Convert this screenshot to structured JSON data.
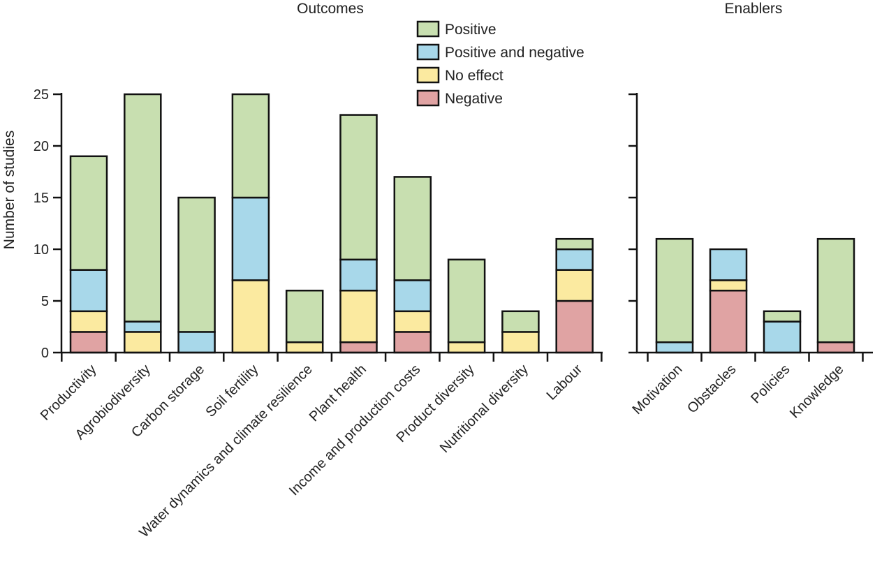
{
  "chart_data": {
    "type": "bar",
    "stacked": true,
    "ylabel": "Number of studies",
    "ylim": [
      0,
      25
    ],
    "yticks": [
      0,
      5,
      10,
      15,
      20,
      25
    ],
    "series": [
      {
        "name": "Negative",
        "color": "#e0a3a3"
      },
      {
        "name": "No effect",
        "color": "#fbeaa0"
      },
      {
        "name": "Positive and negative",
        "color": "#a8d8ea"
      },
      {
        "name": "Positive",
        "color": "#c8dfb0"
      }
    ],
    "legend": {
      "placement": "top-center",
      "order": [
        "Positive",
        "Positive and negative",
        "No effect",
        "Negative"
      ]
    },
    "panels": [
      {
        "title": "Outcomes",
        "categories": [
          "Productivity",
          "Agrobiodiversity",
          "Carbon storage",
          "Soil fertility",
          "Water dynamics and climate resilience",
          "Plant health",
          "Income and production costs",
          "Product diversity",
          "Nutritional diversity",
          "Labour"
        ],
        "values": {
          "Negative": [
            2,
            0,
            0,
            0,
            0,
            1,
            2,
            0,
            0,
            5
          ],
          "No effect": [
            2,
            2,
            0,
            7,
            1,
            5,
            2,
            1,
            2,
            3
          ],
          "Positive and negative": [
            4,
            1,
            2,
            8,
            0,
            3,
            3,
            0,
            0,
            2
          ],
          "Positive": [
            11,
            22,
            13,
            10,
            5,
            14,
            10,
            8,
            2,
            1
          ]
        }
      },
      {
        "title": "Enablers",
        "categories": [
          "Motivation",
          "Obstacles",
          "Policies",
          "Knowledge"
        ],
        "values": {
          "Negative": [
            0,
            6,
            0,
            1
          ],
          "No effect": [
            0,
            1,
            0,
            0
          ],
          "Positive and negative": [
            1,
            3,
            3,
            0
          ],
          "Positive": [
            10,
            0,
            1,
            10
          ]
        }
      }
    ]
  }
}
